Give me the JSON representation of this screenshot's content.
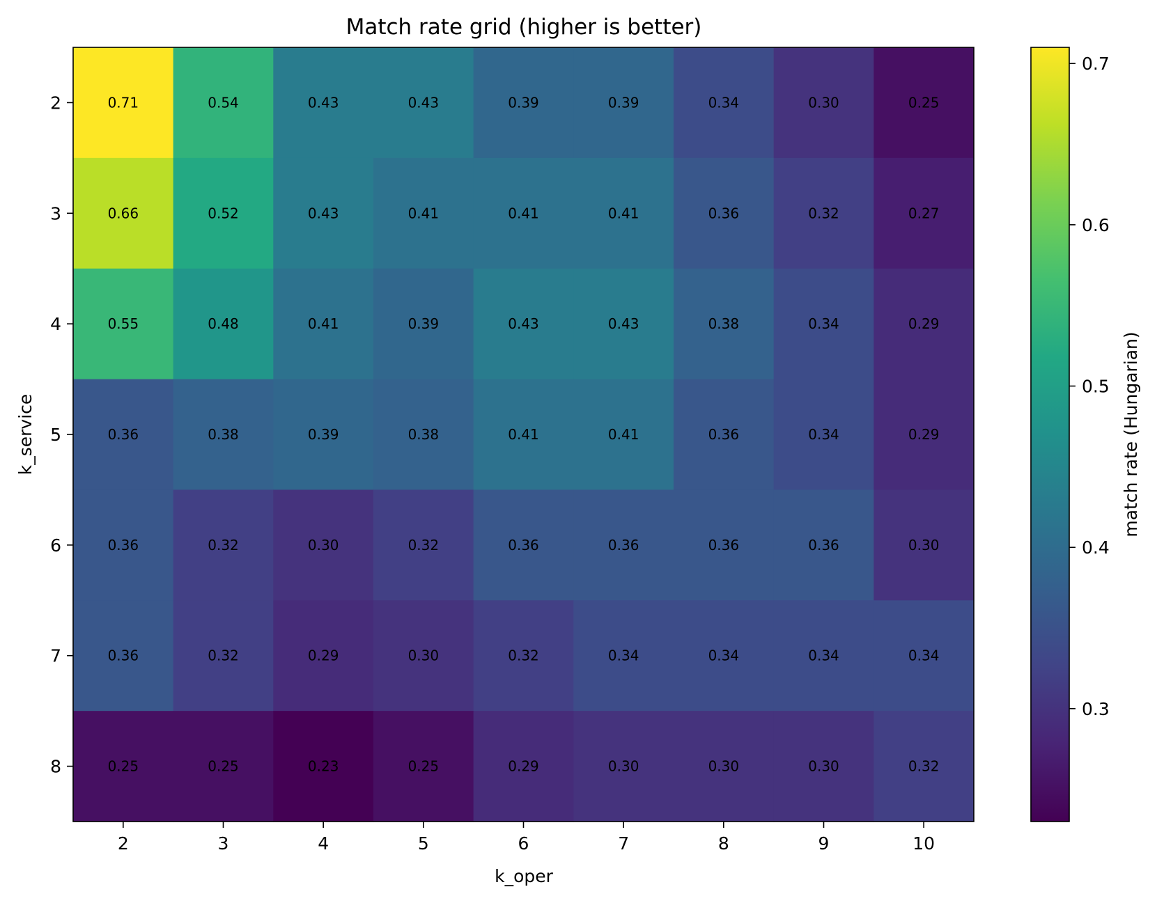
{
  "chart_data": {
    "type": "heatmap",
    "title": "Match rate grid (higher is better)",
    "xlabel": "k_oper",
    "ylabel": "k_service",
    "x": [
      "2",
      "3",
      "4",
      "5",
      "6",
      "7",
      "8",
      "9",
      "10"
    ],
    "y": [
      "2",
      "3",
      "4",
      "5",
      "6",
      "7",
      "8"
    ],
    "values": [
      [
        0.71,
        0.54,
        0.43,
        0.43,
        0.39,
        0.39,
        0.34,
        0.3,
        0.25
      ],
      [
        0.66,
        0.52,
        0.43,
        0.41,
        0.41,
        0.41,
        0.36,
        0.32,
        0.27
      ],
      [
        0.55,
        0.48,
        0.41,
        0.39,
        0.43,
        0.43,
        0.38,
        0.34,
        0.29
      ],
      [
        0.36,
        0.38,
        0.39,
        0.38,
        0.41,
        0.41,
        0.36,
        0.34,
        0.29
      ],
      [
        0.36,
        0.32,
        0.3,
        0.32,
        0.36,
        0.36,
        0.36,
        0.36,
        0.3
      ],
      [
        0.36,
        0.32,
        0.29,
        0.3,
        0.32,
        0.34,
        0.34,
        0.34,
        0.34
      ],
      [
        0.25,
        0.25,
        0.23,
        0.25,
        0.29,
        0.3,
        0.3,
        0.3,
        0.32
      ]
    ],
    "value_labels": [
      [
        "0.71",
        "0.54",
        "0.43",
        "0.43",
        "0.39",
        "0.39",
        "0.34",
        "0.30",
        "0.25"
      ],
      [
        "0.66",
        "0.52",
        "0.43",
        "0.41",
        "0.41",
        "0.41",
        "0.36",
        "0.32",
        "0.27"
      ],
      [
        "0.55",
        "0.48",
        "0.41",
        "0.39",
        "0.43",
        "0.43",
        "0.38",
        "0.34",
        "0.29"
      ],
      [
        "0.36",
        "0.38",
        "0.39",
        "0.38",
        "0.41",
        "0.41",
        "0.36",
        "0.34",
        "0.29"
      ],
      [
        "0.36",
        "0.32",
        "0.30",
        "0.32",
        "0.36",
        "0.36",
        "0.36",
        "0.36",
        "0.30"
      ],
      [
        "0.36",
        "0.32",
        "0.29",
        "0.30",
        "0.32",
        "0.34",
        "0.34",
        "0.34",
        "0.34"
      ],
      [
        "0.25",
        "0.25",
        "0.23",
        "0.25",
        "0.29",
        "0.30",
        "0.30",
        "0.30",
        "0.32"
      ]
    ],
    "colormap": "viridis",
    "colorbar": {
      "label": "match rate (Hungarian)",
      "range": [
        0.23,
        0.71
      ],
      "ticks": [
        0.3,
        0.4,
        0.5,
        0.6,
        0.7
      ],
      "tick_labels": [
        "0.3",
        "0.4",
        "0.5",
        "0.6",
        "0.7"
      ]
    },
    "grid": false
  }
}
